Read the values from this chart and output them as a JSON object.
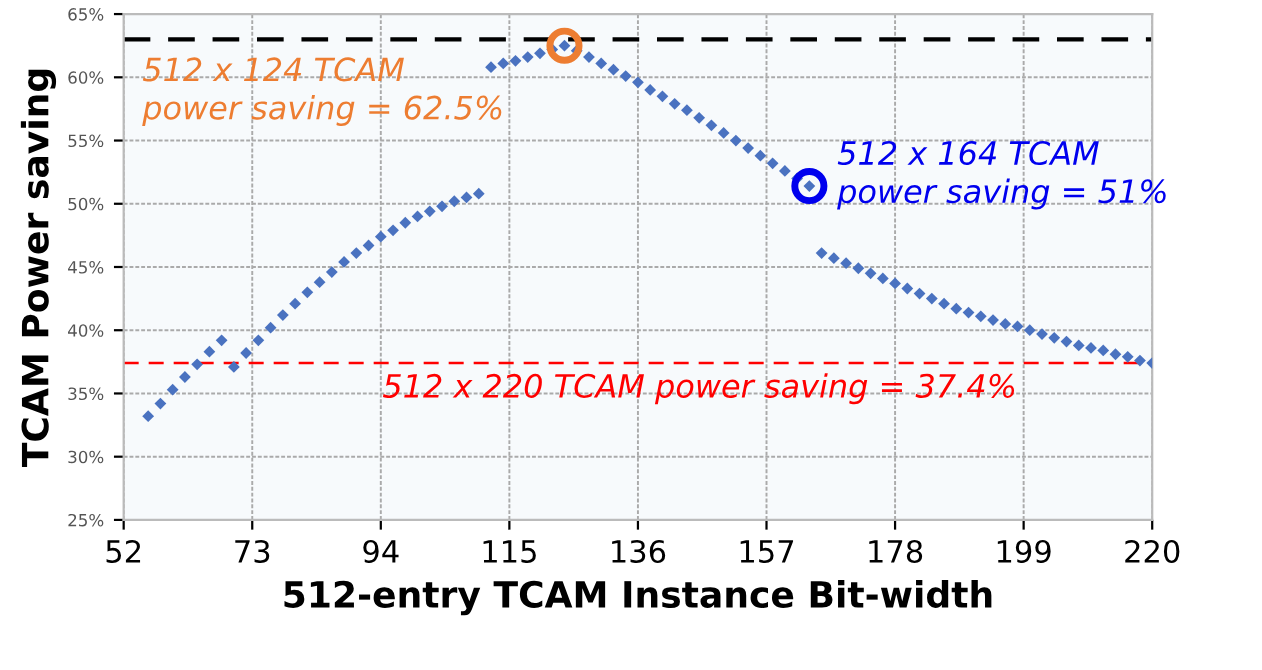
{
  "chart_data": {
    "type": "scatter",
    "xlabel": "512-entry TCAM Instance Bit-width",
    "ylabel": "TCAM Power saving",
    "xlim": [
      52,
      220
    ],
    "xticks": [
      52,
      73,
      94,
      115,
      136,
      157,
      178,
      199,
      220
    ],
    "ylim": [
      25,
      65
    ],
    "yticks": [
      {
        "value": 25,
        "label": "25%"
      },
      {
        "value": 30,
        "label": "30%"
      },
      {
        "value": 35,
        "label": "35%"
      },
      {
        "value": 40,
        "label": "40%"
      },
      {
        "value": 45,
        "label": "45%"
      },
      {
        "value": 50,
        "label": "50%"
      },
      {
        "value": 55,
        "label": "55%"
      },
      {
        "value": 60,
        "label": "60%"
      },
      {
        "value": 65,
        "label": "65%"
      }
    ],
    "grid": true,
    "marker": "diamond",
    "series": [
      {
        "color": "#4a72c0",
        "x": [
          56,
          58,
          60,
          62,
          64,
          66,
          68,
          70,
          72,
          74,
          76,
          78,
          80,
          82,
          84,
          86,
          88,
          90,
          92,
          94,
          96,
          98,
          100,
          102,
          104,
          106,
          108,
          110,
          112,
          114,
          116,
          118,
          120,
          122,
          124,
          126,
          128,
          130,
          132,
          134,
          136,
          138,
          140,
          142,
          144,
          146,
          148,
          150,
          152,
          154,
          156,
          158,
          160,
          162,
          164,
          166,
          168,
          170,
          172,
          174,
          176,
          178,
          180,
          182,
          184,
          186,
          188,
          190,
          192,
          194,
          196,
          198,
          200,
          202,
          204,
          206,
          208,
          210,
          212,
          214,
          216,
          218,
          220
        ],
        "values": [
          33.2,
          34.2,
          35.3,
          36.3,
          37.3,
          38.3,
          39.2,
          37.1,
          38.2,
          39.2,
          40.2,
          41.2,
          42.1,
          43.0,
          43.8,
          44.6,
          45.4,
          46.1,
          46.7,
          47.4,
          47.9,
          48.5,
          49.0,
          49.4,
          49.8,
          50.2,
          50.5,
          50.8,
          60.8,
          61.1,
          61.3,
          61.6,
          61.9,
          62.2,
          62.5,
          62.1,
          61.6,
          61.1,
          60.6,
          60.1,
          59.6,
          59.0,
          58.5,
          57.9,
          57.4,
          56.8,
          56.2,
          55.6,
          55.0,
          54.4,
          53.8,
          53.2,
          52.6,
          52.0,
          51.4,
          46.1,
          45.7,
          45.3,
          44.9,
          44.5,
          44.1,
          43.7,
          43.3,
          42.9,
          42.5,
          42.1,
          41.7,
          41.4,
          41.1,
          40.8,
          40.5,
          40.3,
          40.0,
          39.7,
          39.4,
          39.1,
          38.8,
          38.6,
          38.4,
          38.1,
          37.9,
          37.6,
          37.4
        ]
      },
      {
        "color": "#ed7d31",
        "marker": "circle",
        "x": [
          124
        ],
        "values": [
          62.5
        ]
      },
      {
        "color": "#0000ee",
        "marker": "circle",
        "x": [
          164
        ],
        "values": [
          51.4
        ]
      }
    ],
    "annotations": [
      {
        "text": "512 x 124 TCAM\npower saving = 62.5%",
        "x": 124,
        "y": 62.5
      },
      {
        "text": "512 x 164 TCAM\npower saving = 51%",
        "x": 164,
        "y": 51.4
      }
    ],
    "ref_lines": [
      {
        "axis": "y",
        "value": 63,
        "color": "#000000",
        "line_style": "dashed"
      },
      {
        "axis": "y",
        "value": 37.4,
        "label": "512 x 220 TCAM power saving = 37.4%",
        "color": "#ff0000",
        "line_style": "dashed"
      }
    ]
  }
}
